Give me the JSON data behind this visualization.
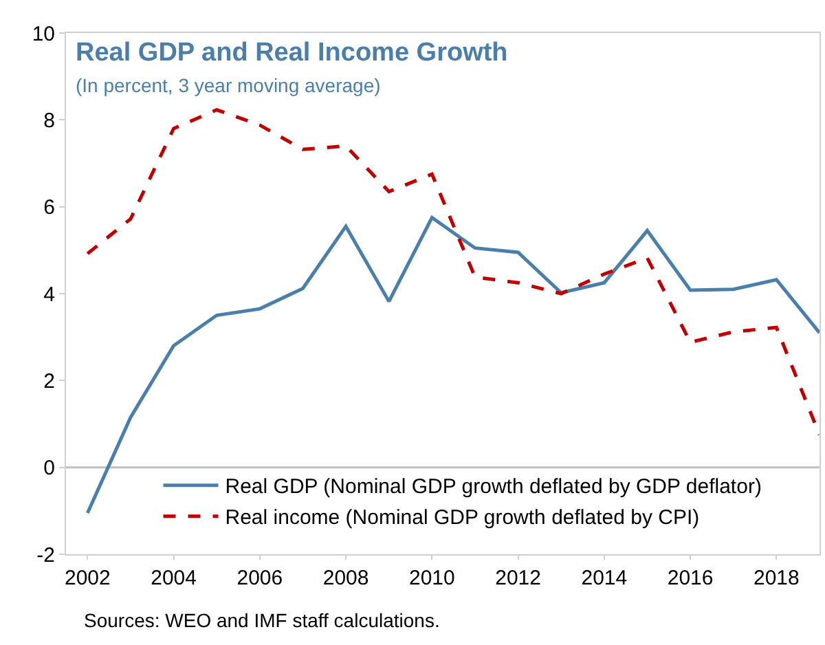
{
  "chart_data": {
    "type": "line",
    "title": "Real GDP and Real Income Growth",
    "subtitle": "(In percent, 3 year moving average)",
    "x": [
      2002,
      2003,
      2004,
      2005,
      2006,
      2007,
      2008,
      2009,
      2010,
      2011,
      2012,
      2013,
      2014,
      2015,
      2016,
      2017,
      2018,
      2019
    ],
    "series": [
      {
        "name": "Real GDP (Nominal GDP growth deflated by GDP deflator)",
        "color": "#4a7fab",
        "line_style": "solid",
        "values": [
          -1.05,
          1.15,
          2.8,
          3.5,
          3.65,
          4.12,
          5.55,
          3.82,
          5.75,
          5.05,
          4.95,
          4.02,
          4.25,
          5.45,
          4.08,
          4.1,
          4.32,
          3.1
        ]
      },
      {
        "name": "Real income (Nominal GDP growth deflated by CPI)",
        "color": "#c00000",
        "line_style": "dashed",
        "values": [
          4.92,
          5.72,
          7.8,
          8.23,
          7.88,
          7.32,
          7.4,
          6.35,
          6.75,
          4.38,
          4.25,
          4.0,
          4.45,
          4.82,
          2.88,
          3.12,
          3.22,
          0.75
        ]
      }
    ],
    "xlim": [
      2001.5,
      2019
    ],
    "xticks": [
      2002,
      2004,
      2006,
      2008,
      2010,
      2012,
      2014,
      2016,
      2018
    ],
    "ylim": [
      -2,
      10
    ],
    "yticks": [
      -2,
      0,
      2,
      4,
      6,
      8,
      10
    ],
    "ref_lines": [
      {
        "axis": "y",
        "value": 0,
        "color": "#bfbfbf"
      }
    ],
    "grid": false,
    "legend": "bottom",
    "marker": "none",
    "annotations": [
      "Sources: WEO and IMF staff calculations."
    ]
  }
}
